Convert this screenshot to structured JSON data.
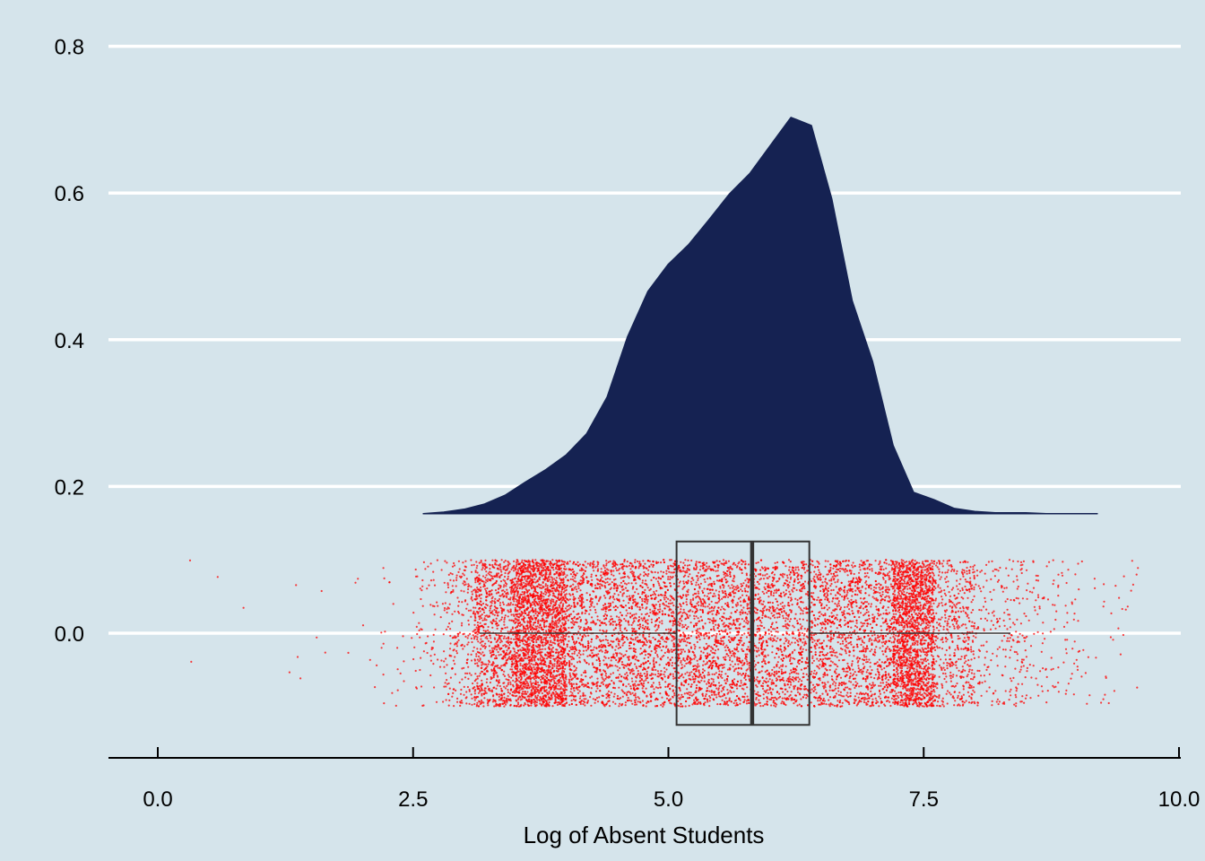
{
  "chart_data": {
    "type": "raincloud",
    "title": "",
    "xlabel": "Log of Absent Students",
    "ylabel": "",
    "xlim": [
      -0.5,
      10.0
    ],
    "ylim": [
      -0.17,
      0.82
    ],
    "grid": {
      "horizontal_major": true,
      "vertical": false
    },
    "legend": "none",
    "colors": {
      "background": "#d5e4eb",
      "density_fill": "#152252",
      "points": "#ff0000",
      "box_line": "#333333",
      "grid": "#ffffff"
    },
    "x_ticks": [
      {
        "value": 0.0,
        "label": "0.0"
      },
      {
        "value": 2.5,
        "label": "2.5"
      },
      {
        "value": 5.0,
        "label": "5.0"
      },
      {
        "value": 7.5,
        "label": "7.5"
      },
      {
        "value": 10.0,
        "label": "10.0"
      }
    ],
    "y_ticks": [
      {
        "value": 0.0,
        "label": "0.0"
      },
      {
        "value": 0.2,
        "label": "0.2"
      },
      {
        "value": 0.4,
        "label": "0.4"
      },
      {
        "value": 0.6,
        "label": "0.6"
      },
      {
        "value": 0.8,
        "label": "0.8"
      }
    ],
    "density": {
      "baseline": 0.163,
      "x": [
        2.6,
        2.8,
        3.0,
        3.2,
        3.4,
        3.6,
        3.8,
        4.0,
        4.2,
        4.4,
        4.6,
        4.8,
        5.0,
        5.2,
        5.4,
        5.6,
        5.8,
        6.0,
        6.2,
        6.4,
        6.6,
        6.8,
        7.0,
        7.2,
        7.4,
        7.6,
        7.8,
        8.0,
        8.2,
        8.5,
        8.7,
        8.9,
        9.1,
        9.2
      ],
      "y": [
        0.163,
        0.165,
        0.169,
        0.176,
        0.188,
        0.206,
        0.223,
        0.243,
        0.272,
        0.322,
        0.404,
        0.466,
        0.503,
        0.53,
        0.564,
        0.599,
        0.627,
        0.665,
        0.703,
        0.692,
        0.592,
        0.453,
        0.37,
        0.256,
        0.192,
        0.182,
        0.17,
        0.166,
        0.164,
        0.164,
        0.163,
        0.163,
        0.163,
        0.163
      ]
    },
    "boxplot": {
      "y_center": 0.0,
      "half_height": 0.125,
      "whisker_low": 3.15,
      "q1": 5.08,
      "median": 5.82,
      "q3": 6.38,
      "whisker_high": 8.35
    },
    "jitter": {
      "y_half_width": 0.1,
      "bins": [
        {
          "x0": 0.0,
          "x1": 0.5,
          "count": 2
        },
        {
          "x0": 0.5,
          "x1": 1.0,
          "count": 2
        },
        {
          "x0": 1.0,
          "x1": 1.5,
          "count": 4
        },
        {
          "x0": 1.5,
          "x1": 2.0,
          "count": 6
        },
        {
          "x0": 2.0,
          "x1": 2.5,
          "count": 25
        },
        {
          "x0": 2.5,
          "x1": 2.8,
          "count": 70
        },
        {
          "x0": 2.8,
          "x1": 3.1,
          "count": 220
        },
        {
          "x0": 3.1,
          "x1": 3.5,
          "count": 900
        },
        {
          "x0": 3.5,
          "x1": 4.0,
          "count": 2200
        },
        {
          "x0": 4.0,
          "x1": 7.2,
          "count": 6000
        },
        {
          "x0": 7.2,
          "x1": 7.6,
          "count": 1800
        },
        {
          "x0": 7.6,
          "x1": 8.0,
          "count": 500
        },
        {
          "x0": 8.0,
          "x1": 8.5,
          "count": 220
        },
        {
          "x0": 8.5,
          "x1": 9.0,
          "count": 110
        },
        {
          "x0": 9.0,
          "x1": 9.6,
          "count": 45
        }
      ]
    }
  }
}
